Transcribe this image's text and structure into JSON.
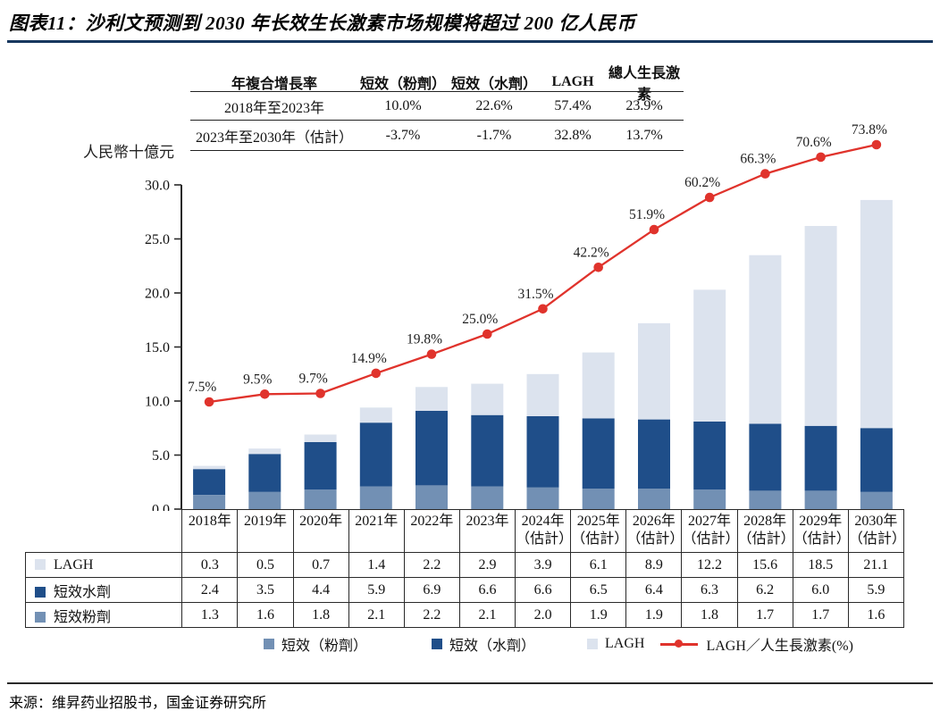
{
  "title": "图表11：沙利文预测到 2030 年长效生长激素市场规模将超过 200 亿人民币",
  "cagr_table": {
    "headers": [
      "年複合增長率",
      "短效（粉劑）",
      "短效（水劑）",
      "LAGH",
      "總人生長激素"
    ],
    "rows": [
      {
        "label": "2018年至2023年",
        "values": [
          "10.0%",
          "22.6%",
          "57.4%",
          "23.9%"
        ]
      },
      {
        "label": "2023年至2030年（估計）",
        "values": [
          "-3.7%",
          "-1.7%",
          "32.8%",
          "13.7%"
        ]
      }
    ]
  },
  "chart_data": {
    "type": "bar",
    "subtype": "stacked_bars_with_percentage_line",
    "title": "",
    "xlabel": "",
    "ylabel": "人民幣十億元",
    "ylim": [
      0,
      30
    ],
    "yticks": [
      0,
      5,
      10,
      15,
      20,
      25,
      30
    ],
    "grid": false,
    "legend_position": "bottom",
    "categories": [
      {
        "year": "2018年",
        "note": ""
      },
      {
        "year": "2019年",
        "note": ""
      },
      {
        "year": "2020年",
        "note": ""
      },
      {
        "year": "2021年",
        "note": ""
      },
      {
        "year": "2022年",
        "note": ""
      },
      {
        "year": "2023年",
        "note": ""
      },
      {
        "year": "2024年",
        "note": "（估計）"
      },
      {
        "year": "2025年",
        "note": "（估計）"
      },
      {
        "year": "2026年",
        "note": "（估計）"
      },
      {
        "year": "2027年",
        "note": "（估計）"
      },
      {
        "year": "2028年",
        "note": "（估計）"
      },
      {
        "year": "2029年",
        "note": "（估計）"
      },
      {
        "year": "2030年",
        "note": "（估計）"
      }
    ],
    "series": [
      {
        "name": "短效（粉劑）",
        "color": "#7290b4",
        "values": [
          1.3,
          1.6,
          1.8,
          2.1,
          2.2,
          2.1,
          2.0,
          1.9,
          1.9,
          1.8,
          1.7,
          1.7,
          1.6
        ]
      },
      {
        "name": "短效（水劑）",
        "color": "#1f4e89",
        "values": [
          2.4,
          3.5,
          4.4,
          5.9,
          6.9,
          6.6,
          6.6,
          6.5,
          6.4,
          6.3,
          6.2,
          6.0,
          5.9
        ]
      },
      {
        "name": "LAGH",
        "color": "#dce3ee",
        "values": [
          0.3,
          0.5,
          0.7,
          1.4,
          2.2,
          2.9,
          3.9,
          6.1,
          8.9,
          12.2,
          15.6,
          18.5,
          21.1
        ]
      }
    ],
    "line_series": {
      "name": "LAGH／人生長激素(%)",
      "color": "#e0332c",
      "values": [
        7.5,
        9.5,
        9.7,
        14.9,
        19.8,
        25.0,
        31.5,
        42.2,
        51.9,
        60.2,
        66.3,
        70.6,
        73.8
      ]
    }
  },
  "data_table": {
    "rows": [
      {
        "label": "LAGH",
        "series_index": 2,
        "swatch": "#dce3ee"
      },
      {
        "label": "短效水劑",
        "series_index": 1,
        "swatch": "#1f4e89"
      },
      {
        "label": "短效粉劑",
        "series_index": 0,
        "swatch": "#7290b4"
      }
    ]
  },
  "legend": {
    "items": [
      {
        "type": "swatch",
        "label": "短效（粉劑）",
        "color": "#7290b4"
      },
      {
        "type": "swatch",
        "label": "短效（水劑）",
        "color": "#1f4e89"
      },
      {
        "type": "swatch",
        "label": "LAGH",
        "color": "#dce3ee"
      },
      {
        "type": "line",
        "label": "LAGH／人生長激素(%)",
        "color": "#e0332c"
      }
    ]
  },
  "source": "来源：维昇药业招股书，国金证券研究所",
  "colors": {
    "underline": "#17375e",
    "border": "#2a2a2a",
    "pct_label": "#1f1f1f",
    "axis": "#2a2a2a"
  }
}
